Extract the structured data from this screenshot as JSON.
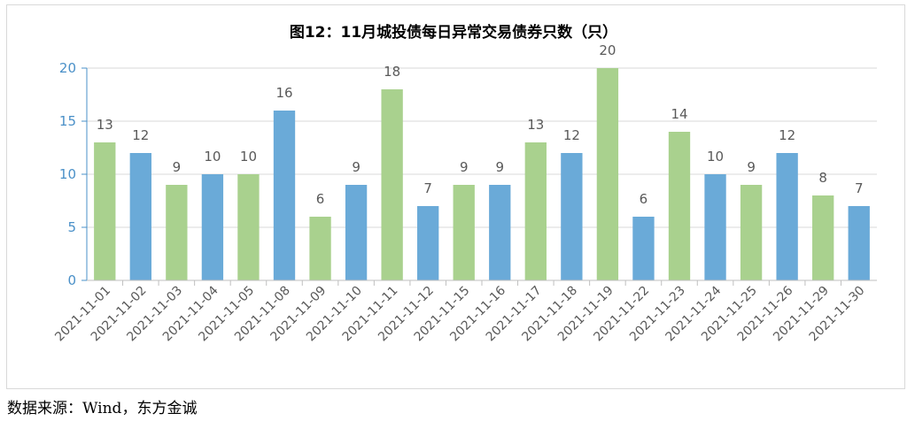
{
  "chart_data": {
    "type": "bar",
    "title": "图12：11月城投债每日异常交易债券只数（只）",
    "xlabel": "",
    "ylabel": "",
    "ylim": [
      0,
      20
    ],
    "yticks": [
      "0",
      "5",
      "10",
      "15",
      "20"
    ],
    "grid": true,
    "legend": "none",
    "categories": [
      "2021-11-01",
      "2021-11-02",
      "2021-11-03",
      "2021-11-04",
      "2021-11-05",
      "2021-11-08",
      "2021-11-09",
      "2021-11-10",
      "2021-11-11",
      "2021-11-12",
      "2021-11-15",
      "2021-11-16",
      "2021-11-17",
      "2021-11-18",
      "2021-11-19",
      "2021-11-22",
      "2021-11-23",
      "2021-11-24",
      "2021-11-25",
      "2021-11-26",
      "2021-11-29",
      "2021-11-30"
    ],
    "values": [
      13,
      12,
      9,
      10,
      10,
      16,
      6,
      9,
      18,
      7,
      9,
      9,
      13,
      12,
      20,
      6,
      14,
      10,
      9,
      12,
      8,
      7
    ],
    "bar_colors": [
      "#a9d18e",
      "#6aaad8",
      "#a9d18e",
      "#6aaad8",
      "#a9d18e",
      "#6aaad8",
      "#a9d18e",
      "#6aaad8",
      "#a9d18e",
      "#6aaad8",
      "#a9d18e",
      "#6aaad8",
      "#a9d18e",
      "#6aaad8",
      "#a9d18e",
      "#6aaad8",
      "#a9d18e",
      "#6aaad8",
      "#a9d18e",
      "#6aaad8",
      "#a9d18e",
      "#6aaad8"
    ],
    "axis_color": "#4a90c8",
    "label_color": "#595959"
  },
  "source": "数据来源：Wind，东方金诚"
}
